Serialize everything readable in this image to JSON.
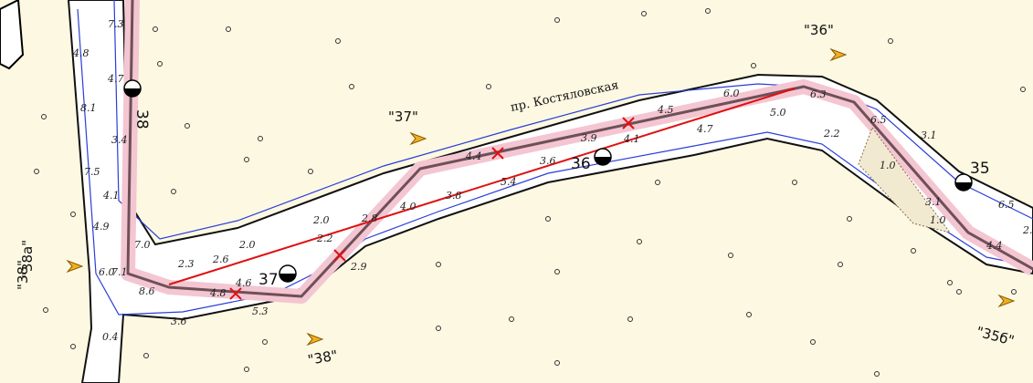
{
  "channel_name": "пр. Костяловская",
  "depths": [
    "7.3",
    "4.8",
    "4.7",
    "8.1",
    "3.4",
    "7.5",
    "4.1",
    "4.9",
    "7.0",
    "6.0",
    "7.1",
    "8.6",
    "2.3",
    "2.6",
    "2.0",
    "2.0",
    "4.8",
    "4.6",
    "5.3",
    "3.6",
    "0.4",
    "2.2",
    "2.9",
    "2.8",
    "4.0",
    "3.8",
    "5.4",
    "3.6",
    "4.4",
    "3.9",
    "4.1",
    "4.7",
    "4.5",
    "6.0",
    "5.0",
    "6.3",
    "6.5",
    "3.1",
    "2.2",
    "1.0",
    "3.1",
    "1.0",
    "6.5",
    "2.",
    "4.4"
  ],
  "km_marks": [
    "38",
    "37",
    "36",
    "35"
  ],
  "signs": [
    "\"37\"",
    "\"36\"",
    "\"38а\"",
    "\"38\"",
    "\"38\"",
    "\"35б\""
  ]
}
